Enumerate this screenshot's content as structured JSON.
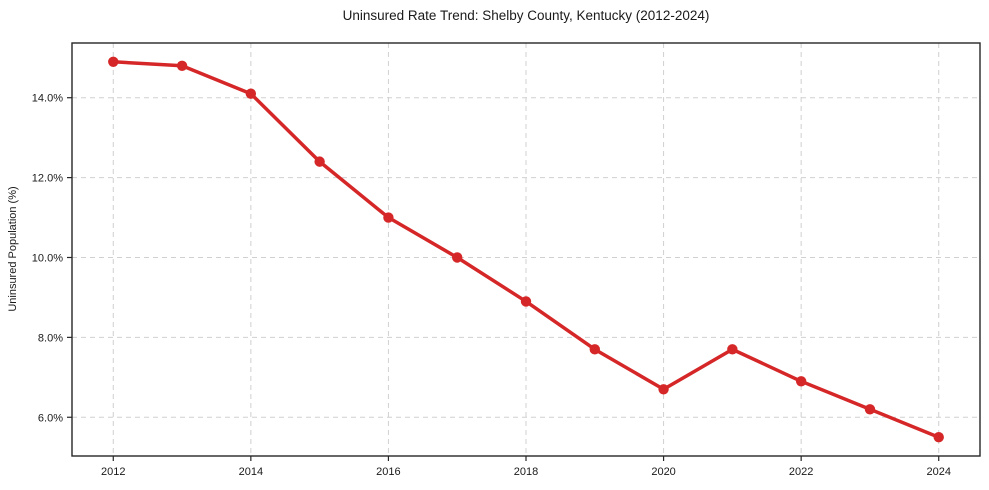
{
  "chart_data": {
    "type": "line",
    "title": "Uninsured Rate Trend: Shelby County, Kentucky (2012-2024)",
    "xlabel": "",
    "ylabel": "Uninsured Population (%)",
    "x": [
      2012,
      2013,
      2014,
      2015,
      2016,
      2017,
      2018,
      2019,
      2020,
      2021,
      2022,
      2023,
      2024
    ],
    "values": [
      14.9,
      14.8,
      14.1,
      12.4,
      11.0,
      10.0,
      8.9,
      7.7,
      6.7,
      7.7,
      6.9,
      6.2,
      5.5
    ],
    "xticks": [
      2012,
      2014,
      2016,
      2018,
      2020,
      2022,
      2024
    ],
    "xtick_labels": [
      "2012",
      "2014",
      "2016",
      "2018",
      "2020",
      "2022",
      "2024"
    ],
    "yticks": [
      6.0,
      8.0,
      10.0,
      12.0,
      14.0
    ],
    "ytick_labels": [
      "6.0%",
      "8.0%",
      "10.0%",
      "12.0%",
      "14.0%"
    ],
    "xlim": [
      2011.4,
      2024.6
    ],
    "ylim": [
      5.03,
      15.37
    ],
    "grid": true,
    "grid_style": "dashed",
    "legend": "none",
    "marker": "circle",
    "line_width": 3.5,
    "marker_radius": 5.2
  },
  "colors": {
    "line": "#d62728",
    "grid": "#d0d0d0",
    "spine": "#262626",
    "text": "#1a1a1a",
    "background": "#ffffff"
  }
}
